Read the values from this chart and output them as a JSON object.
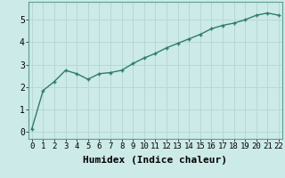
{
  "x": [
    0,
    1,
    2,
    3,
    4,
    5,
    6,
    7,
    8,
    9,
    10,
    11,
    12,
    13,
    14,
    15,
    16,
    17,
    18,
    19,
    20,
    21,
    22
  ],
  "y": [
    0.15,
    1.85,
    2.25,
    2.75,
    2.6,
    2.35,
    2.6,
    2.65,
    2.75,
    3.05,
    3.3,
    3.5,
    3.75,
    3.95,
    4.15,
    4.35,
    4.6,
    4.75,
    4.85,
    5.0,
    5.2,
    5.3,
    5.2
  ],
  "line_color": "#2e7d6e",
  "marker": "+",
  "markersize": 3.5,
  "linewidth": 1.0,
  "xlabel": "Humidex (Indice chaleur)",
  "xlabel_fontsize": 8,
  "xlabel_fontweight": "bold",
  "ylabel_ticks": [
    0,
    1,
    2,
    3,
    4,
    5
  ],
  "xtick_labels": [
    "0",
    "1",
    "2",
    "3",
    "4",
    "5",
    "6",
    "7",
    "8",
    "9",
    "10",
    "11",
    "12",
    "13",
    "14",
    "15",
    "16",
    "17",
    "18",
    "19",
    "20",
    "21",
    "22"
  ],
  "xlim": [
    -0.3,
    22.3
  ],
  "ylim": [
    -0.3,
    5.8
  ],
  "bg_color": "#cceae7",
  "grid_color": "#b8d8d5",
  "tick_fontsize": 6.5,
  "ytick_fontsize": 7
}
